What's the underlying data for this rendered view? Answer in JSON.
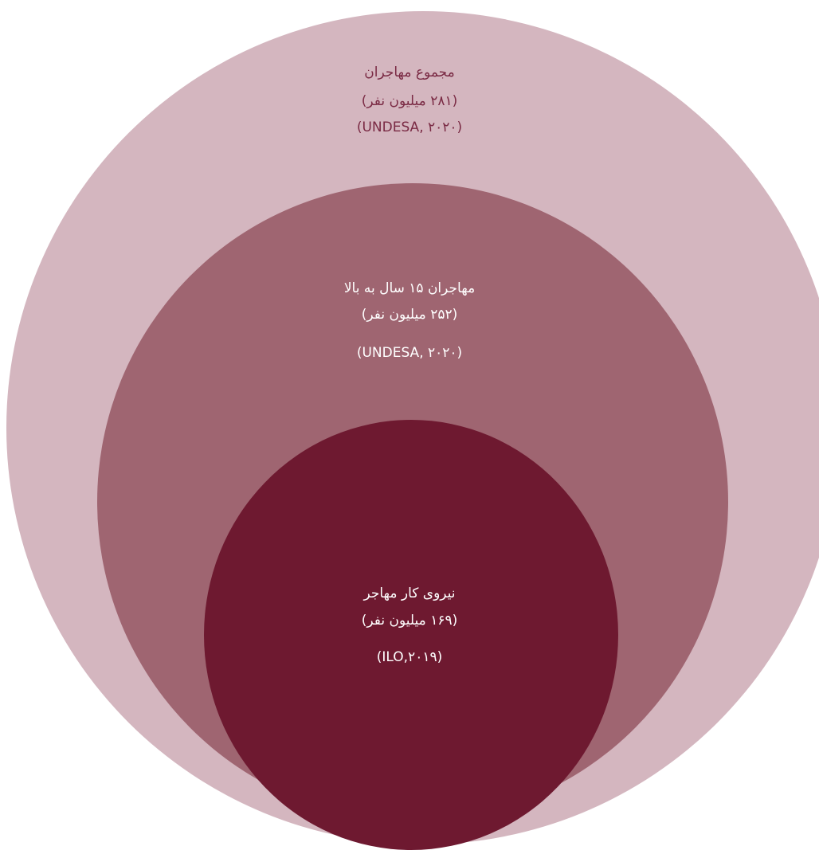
{
  "colors": {
    "outer_fill": "#d4b6bf",
    "middle_fill": "#9f6571",
    "inner_fill": "#6e1930",
    "outer_text": "#7a2a44",
    "inner_text": "#ffffff"
  },
  "circles": {
    "outer": {
      "title": "مجموع مهاجران",
      "count": "(۲۸۱ میلیون نفر)",
      "source": "(UNDESA, ۲۰۲۰)"
    },
    "middle": {
      "title": "مهاجران ۱۵ سال به بالا",
      "count": "(۲۵۲ میلیون نفر)",
      "source": "(UNDESA, ۲۰۲۰)"
    },
    "inner": {
      "title": "نیروی کار مهاجر",
      "count": "(۱۶۹ میلیون نفر)",
      "source": "(ILO,۲۰۱۹)"
    }
  }
}
